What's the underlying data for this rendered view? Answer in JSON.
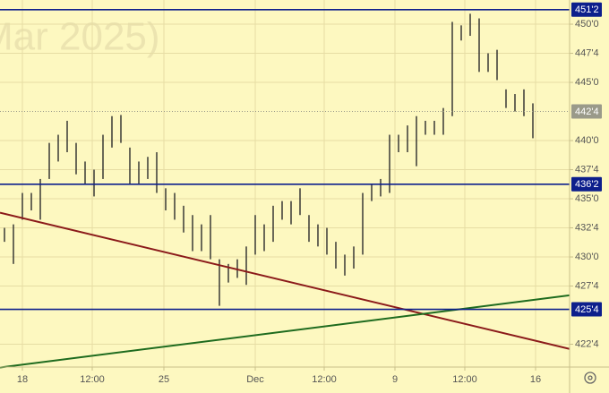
{
  "chart_data": {
    "type": "hilo",
    "watermark": "Mar 2025)",
    "bar_color": "#2b2b2b",
    "x": [
      0.5,
      1.5,
      2.5,
      3.5,
      4.5,
      5.5,
      6.5,
      7.5,
      8.5,
      9.5,
      10.5,
      11.5,
      12.5,
      13.5,
      14.5,
      15.5,
      16.5,
      17.5,
      18.5,
      19.5,
      20.5,
      21.5,
      22.5,
      23.5,
      24.5,
      25.5,
      26.5,
      27.5,
      28.5,
      29.5,
      30.5,
      31.5,
      32.5,
      33.5,
      34.5,
      35.5,
      36.5,
      37.5,
      38.5,
      39.5,
      40.5,
      41.5,
      42.5,
      43.5,
      44.5,
      45.5,
      46.5,
      47.5,
      48.5,
      49.5,
      50.5,
      51.5,
      52.5,
      53.5,
      54.5,
      55.5,
      56.5,
      57.5,
      58.5,
      59.5
    ],
    "high": [
      432.5,
      432.8,
      435.5,
      435.5,
      436.7,
      439.8,
      440.5,
      441.7,
      439.8,
      438.2,
      437.5,
      440.5,
      442.1,
      442.2,
      439.4,
      438.2,
      438.6,
      439.0,
      435.9,
      435.5,
      434.4,
      433.6,
      432.8,
      433.6,
      429.8,
      429.4,
      429.8,
      430.9,
      433.6,
      432.8,
      434.4,
      434.8,
      434.8,
      435.9,
      433.6,
      432.8,
      432.5,
      431.3,
      430.2,
      430.9,
      435.5,
      436.3,
      436.7,
      440.5,
      440.5,
      441.3,
      442.1,
      441.7,
      441.7,
      442.8,
      450.2,
      449.9,
      450.9,
      450.5,
      447.5,
      447.8,
      444.4,
      444.0,
      444.4,
      443.2
    ],
    "low": [
      431.3,
      429.4,
      433.2,
      434.0,
      433.2,
      436.7,
      438.2,
      439.0,
      437.1,
      436.3,
      435.2,
      436.7,
      439.4,
      439.8,
      436.3,
      436.3,
      436.7,
      435.5,
      434.0,
      433.2,
      432.1,
      430.5,
      430.5,
      429.8,
      425.8,
      427.8,
      428.2,
      427.6,
      430.2,
      430.5,
      431.3,
      433.2,
      432.8,
      433.6,
      431.3,
      430.9,
      430.2,
      429.0,
      428.4,
      429.0,
      430.2,
      434.8,
      435.2,
      435.5,
      439.0,
      439.0,
      437.8,
      440.5,
      440.5,
      440.5,
      442.1,
      448.6,
      449.0,
      445.9,
      445.9,
      445.2,
      442.8,
      442.5,
      442.1,
      440.2
    ],
    "xlim": [
      0,
      63.6
    ],
    "xticks": [
      {
        "value": 2.5,
        "label": "18"
      },
      {
        "value": 10.3,
        "label": "12:00"
      },
      {
        "value": 18.3,
        "label": "25"
      },
      {
        "value": 28.5,
        "label": "Dec"
      },
      {
        "value": 36.2,
        "label": "12:00"
      },
      {
        "value": 44.1,
        "label": "9"
      },
      {
        "value": 51.9,
        "label": "12:00"
      },
      {
        "value": 59.8,
        "label": "16"
      }
    ],
    "ylim": [
      420.54,
      452.08
    ],
    "yticks": [
      {
        "value": 422.5,
        "label": "422'4"
      },
      {
        "value": 427.5,
        "label": "427'4"
      },
      {
        "value": 430,
        "label": "430'0"
      },
      {
        "value": 432.5,
        "label": "432'4"
      },
      {
        "value": 435,
        "label": "435'0"
      },
      {
        "value": 437.5,
        "label": "437'4"
      },
      {
        "value": 440,
        "label": "440'0"
      },
      {
        "value": 445,
        "label": "445'0"
      },
      {
        "value": 447.5,
        "label": "447'4"
      },
      {
        "value": 450,
        "label": "450'0"
      }
    ],
    "grid": true,
    "levels": [
      {
        "value": 451.25,
        "label": "451'2",
        "color": "#0d1f8c",
        "style": "solid"
      },
      {
        "value": 442.5,
        "label": "442'4",
        "color": "#9a9a8a",
        "style": "dotted"
      },
      {
        "value": 436.25,
        "label": "436'2",
        "color": "#0d1f8c",
        "style": "solid"
      },
      {
        "value": 425.5,
        "label": "425'4",
        "color": "#0d1f8c",
        "style": "solid"
      }
    ],
    "trendlines": [
      {
        "color": "#8b1a1a",
        "x": [
          0,
          63.6
        ],
        "values": [
          433.8,
          422.1
        ]
      },
      {
        "color": "#1e6b1e",
        "x": [
          0,
          63.6
        ],
        "values": [
          420.5,
          426.7
        ]
      }
    ]
  }
}
